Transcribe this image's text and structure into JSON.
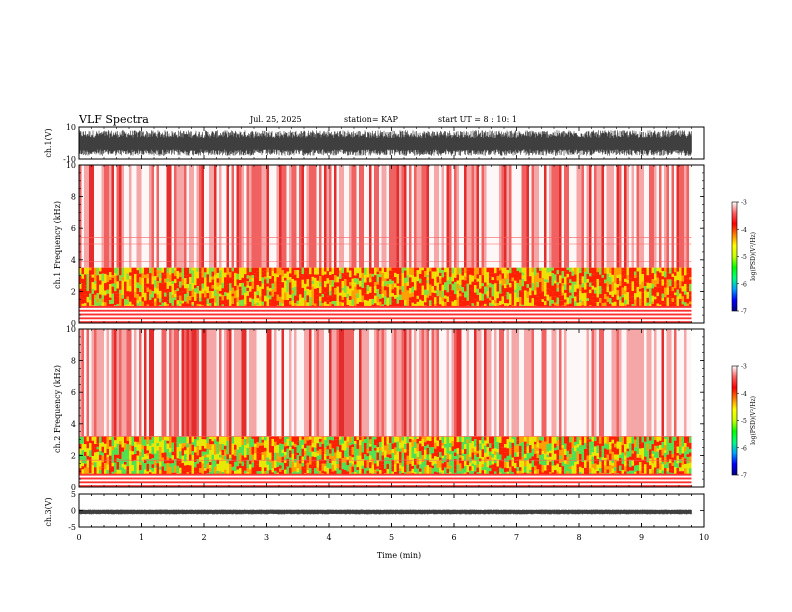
{
  "header": {
    "title": "VLF Spectra",
    "date": "Jul. 25, 2025",
    "station": "station= KAP",
    "start_ut": "start UT =  8 : 10: 1"
  },
  "chart_data": [
    {
      "type": "line",
      "id": "ch1_waveform",
      "ylabel": "ch.1(V)",
      "ylim": [
        -10,
        10
      ],
      "yticks": [
        10,
        -10
      ],
      "xlim": [
        0,
        10
      ],
      "data_extent_min": 9.8,
      "amplitude_range": [
        -8,
        8
      ],
      "color": "#000000"
    },
    {
      "type": "heatmap",
      "id": "ch1_spectrogram",
      "ylabel": "ch.1 Frequency (kHz)",
      "ylim": [
        0,
        10
      ],
      "yticks": [
        0,
        2,
        4,
        6,
        8,
        10
      ],
      "xlim": [
        0,
        10
      ],
      "data_extent_min": 9.8,
      "bands": [
        {
          "from_khz": 0.0,
          "to_khz": 1.0,
          "level": "striped white/red"
        },
        {
          "from_khz": 1.0,
          "to_khz": 3.5,
          "level": "-4 to -5 (red/yellow/green)"
        },
        {
          "from_khz": 3.5,
          "to_khz": 5.5,
          "level": "-3.5 to -4 (red)"
        },
        {
          "from_khz": 5.5,
          "to_khz": 10.0,
          "level": "-3 (white/pink)"
        }
      ]
    },
    {
      "type": "heatmap",
      "id": "ch2_spectrogram",
      "ylabel": "ch.2 Frequency (kHz)",
      "ylim": [
        0,
        10
      ],
      "yticks": [
        0,
        2,
        4,
        6,
        8,
        10
      ],
      "xlim": [
        0,
        10
      ],
      "data_extent_min": 9.8,
      "bands": [
        {
          "from_khz": 0.0,
          "to_khz": 0.8,
          "level": "striped white/red"
        },
        {
          "from_khz": 0.8,
          "to_khz": 3.2,
          "level": "-4 to -5 (red/yellow/green)"
        },
        {
          "from_khz": 3.2,
          "to_khz": 10.0,
          "level": "-3 to -4 (red/white)"
        }
      ]
    },
    {
      "type": "line",
      "id": "ch3_waveform",
      "ylabel": "ch.3(V)",
      "ylim": [
        -5,
        5
      ],
      "yticks": [
        5,
        0,
        -5
      ],
      "xlim": [
        0,
        10
      ],
      "data_extent_min": 9.8,
      "amplitude_range": [
        -1.2,
        0.3
      ],
      "color": "#000000"
    }
  ],
  "colorbar": {
    "label": "log(PSD)(V²/Hz)",
    "ticks": [
      -3,
      -4,
      -5,
      -6,
      -7
    ],
    "range": [
      -7,
      -3
    ],
    "colors": [
      "#000080",
      "#0000ff",
      "#00a0ff",
      "#00ff80",
      "#00ff00",
      "#c8ff00",
      "#ffff00",
      "#ff8000",
      "#ff0000",
      "#ff6060",
      "#ffffff"
    ]
  },
  "xaxis": {
    "label": "Time (min)",
    "ticks": [
      0,
      1,
      2,
      3,
      4,
      5,
      6,
      7,
      8,
      9,
      10
    ]
  }
}
